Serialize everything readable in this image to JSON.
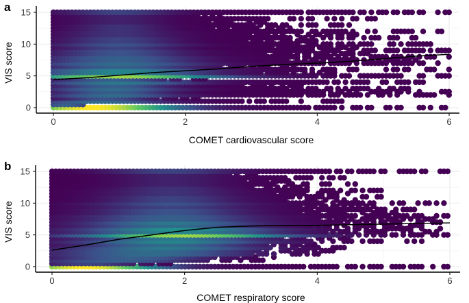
{
  "chart_data": [
    {
      "panel": "a",
      "type": "scatter",
      "title": "",
      "xlabel": "COMET cardiovascular score",
      "ylabel": "VIS score",
      "xlim": [
        0,
        6
      ],
      "ylim": [
        0,
        15
      ],
      "xticks": [
        0,
        2,
        4,
        6
      ],
      "yticks": [
        0,
        5,
        10,
        15
      ],
      "grid": true,
      "color_scale": [
        "#440154",
        "#3b528b",
        "#21918c",
        "#5ec962",
        "#fde725"
      ],
      "density_by_level": [
        {
          "y": 0,
          "max_x": 6.0,
          "hot": [
            0.6,
            0.9
          ],
          "hot_strength": 1.0
        },
        {
          "y": 0.5,
          "max_x": 0.5,
          "hot": [
            0.2,
            0.3
          ],
          "hot_strength": 0.3
        },
        {
          "y": 1,
          "max_x": 4.4,
          "hot": [
            0.7,
            0.7
          ],
          "hot_strength": 0.35
        },
        {
          "y": 1.5,
          "max_x": 2.2,
          "hot": [
            0.8,
            0.5
          ],
          "hot_strength": 0.25
        },
        {
          "y": 2,
          "max_x": 6.0,
          "hot": [
            0.9,
            0.7
          ],
          "hot_strength": 0.35
        },
        {
          "y": 2.5,
          "max_x": 6.0,
          "hot": [
            0.9,
            0.6
          ],
          "hot_strength": 0.3
        },
        {
          "y": 3,
          "max_x": 5.6,
          "hot": [
            0.9,
            0.7
          ],
          "hot_strength": 0.35
        },
        {
          "y": 3.5,
          "max_x": 3.8,
          "hot": [
            0.9,
            0.6
          ],
          "hot_strength": 0.3
        },
        {
          "y": 4,
          "max_x": 6.0,
          "hot": [
            1.0,
            0.8
          ],
          "hot_strength": 0.4
        },
        {
          "y": 4.5,
          "max_x": 2.4,
          "hot": [
            0.9,
            0.6
          ],
          "hot_strength": 0.3
        },
        {
          "y": 5,
          "max_x": 6.0,
          "hot": [
            1.0,
            1.1
          ],
          "hot_strength": 0.85
        },
        {
          "y": 5.5,
          "max_x": 4.3,
          "hot": [
            1.0,
            0.9
          ],
          "hot_strength": 0.45
        },
        {
          "y": 6,
          "max_x": 6.0,
          "hot": [
            1.0,
            0.9
          ],
          "hot_strength": 0.45
        },
        {
          "y": 6.5,
          "max_x": 3.8,
          "hot": [
            1.0,
            0.8
          ],
          "hot_strength": 0.3
        },
        {
          "y": 7,
          "max_x": 6.0,
          "hot": [
            1.0,
            0.9
          ],
          "hot_strength": 0.35
        },
        {
          "y": 7.5,
          "max_x": 5.6,
          "hot": [
            1.0,
            0.8
          ],
          "hot_strength": 0.3
        },
        {
          "y": 8,
          "max_x": 6.0,
          "hot": [
            1.0,
            0.8
          ],
          "hot_strength": 0.3
        },
        {
          "y": 8.5,
          "max_x": 5.0,
          "hot": [
            1.0,
            0.7
          ],
          "hot_strength": 0.25
        },
        {
          "y": 9,
          "max_x": 6.0,
          "hot": [
            1.0,
            0.7
          ],
          "hot_strength": 0.25
        },
        {
          "y": 9.5,
          "max_x": 4.6,
          "hot": [
            1.0,
            0.6
          ],
          "hot_strength": 0.2
        },
        {
          "y": 10,
          "max_x": 6.0,
          "hot": [
            1.0,
            0.7
          ],
          "hot_strength": 0.25
        },
        {
          "y": 10.5,
          "max_x": 4.0,
          "hot": [
            1.0,
            0.6
          ],
          "hot_strength": 0.2
        },
        {
          "y": 11,
          "max_x": 5.5,
          "hot": [
            1.0,
            0.6
          ],
          "hot_strength": 0.2
        },
        {
          "y": 11.5,
          "max_x": 4.6,
          "hot": [
            1.0,
            0.6
          ],
          "hot_strength": 0.15
        },
        {
          "y": 12,
          "max_x": 6.0,
          "hot": [
            1.0,
            0.6
          ],
          "hot_strength": 0.15
        },
        {
          "y": 12.5,
          "max_x": 3.6,
          "hot": [
            1.0,
            0.5
          ],
          "hot_strength": 0.15
        },
        {
          "y": 13,
          "max_x": 4.5,
          "hot": [
            1.0,
            0.5
          ],
          "hot_strength": 0.15
        },
        {
          "y": 13.5,
          "max_x": 3.2,
          "hot": [
            1.0,
            0.5
          ],
          "hot_strength": 0.1
        },
        {
          "y": 14,
          "max_x": 4.9,
          "hot": [
            1.0,
            0.5
          ],
          "hot_strength": 0.1
        },
        {
          "y": 14.5,
          "max_x": 2.6,
          "hot": [
            1.0,
            0.5
          ],
          "hot_strength": 0.1
        },
        {
          "y": 15,
          "max_x": 6.0,
          "hot": [
            1.0,
            0.6
          ],
          "hot_strength": 0.2
        }
      ],
      "trend_line": {
        "x": [
          0.0,
          0.5,
          1.0,
          1.5,
          2.0,
          2.5,
          3.0,
          3.5,
          4.0,
          4.5,
          5.0,
          5.5,
          6.0
        ],
        "y": [
          4.4,
          4.7,
          5.1,
          5.5,
          5.8,
          6.1,
          6.5,
          6.8,
          7.0,
          7.3,
          7.7,
          8.1,
          8.4
        ]
      }
    },
    {
      "panel": "b",
      "type": "scatter",
      "title": "",
      "xlabel": "COMET respiratory score",
      "ylabel": "VIS score",
      "xlim": [
        0,
        6
      ],
      "ylim": [
        0,
        15
      ],
      "xticks": [
        0,
        2,
        4,
        6
      ],
      "yticks": [
        0,
        5,
        10,
        15
      ],
      "grid": true,
      "color_scale": [
        "#440154",
        "#3b528b",
        "#21918c",
        "#5ec962",
        "#fde725"
      ],
      "density_by_level": [
        {
          "y": 0,
          "max_x": 6.0,
          "hot": [
            0.5,
            0.8
          ],
          "hot_strength": 1.0
        },
        {
          "y": 0.5,
          "max_x": 1.8,
          "hot": [
            0.6,
            0.5
          ],
          "hot_strength": 0.2
        },
        {
          "y": 1,
          "max_x": 3.2,
          "hot": [
            1.0,
            0.8
          ],
          "hot_strength": 0.3
        },
        {
          "y": 1.5,
          "max_x": 3.4,
          "hot": [
            1.2,
            0.8
          ],
          "hot_strength": 0.3
        },
        {
          "y": 2,
          "max_x": 4.1,
          "hot": [
            1.5,
            1.0
          ],
          "hot_strength": 0.35
        },
        {
          "y": 2.5,
          "max_x": 4.3,
          "hot": [
            1.5,
            1.0
          ],
          "hot_strength": 0.35
        },
        {
          "y": 3,
          "max_x": 4.6,
          "hot": [
            1.7,
            1.0
          ],
          "hot_strength": 0.4
        },
        {
          "y": 3.5,
          "max_x": 4.0,
          "hot": [
            1.7,
            0.9
          ],
          "hot_strength": 0.35
        },
        {
          "y": 4,
          "max_x": 5.6,
          "hot": [
            1.8,
            1.0
          ],
          "hot_strength": 0.45
        },
        {
          "y": 4.5,
          "max_x": 4.6,
          "hot": [
            1.8,
            0.9
          ],
          "hot_strength": 0.4
        },
        {
          "y": 5,
          "max_x": 6.0,
          "hot": [
            2.0,
            1.1
          ],
          "hot_strength": 0.85
        },
        {
          "y": 5.5,
          "max_x": 5.8,
          "hot": [
            1.9,
            1.0
          ],
          "hot_strength": 0.45
        },
        {
          "y": 6,
          "max_x": 6.0,
          "hot": [
            1.9,
            1.0
          ],
          "hot_strength": 0.5
        },
        {
          "y": 6.5,
          "max_x": 5.6,
          "hot": [
            1.8,
            0.9
          ],
          "hot_strength": 0.35
        },
        {
          "y": 7,
          "max_x": 6.0,
          "hot": [
            1.8,
            0.9
          ],
          "hot_strength": 0.4
        },
        {
          "y": 7.5,
          "max_x": 5.8,
          "hot": [
            1.8,
            0.9
          ],
          "hot_strength": 0.3
        },
        {
          "y": 8,
          "max_x": 6.0,
          "hot": [
            1.8,
            0.9
          ],
          "hot_strength": 0.3
        },
        {
          "y": 8.5,
          "max_x": 5.3,
          "hot": [
            1.8,
            0.8
          ],
          "hot_strength": 0.25
        },
        {
          "y": 9,
          "max_x": 5.7,
          "hot": [
            1.8,
            0.8
          ],
          "hot_strength": 0.25
        },
        {
          "y": 9.5,
          "max_x": 5.0,
          "hot": [
            1.8,
            0.8
          ],
          "hot_strength": 0.2
        },
        {
          "y": 10,
          "max_x": 6.0,
          "hot": [
            1.8,
            0.8
          ],
          "hot_strength": 0.25
        },
        {
          "y": 10.5,
          "max_x": 4.7,
          "hot": [
            1.8,
            0.7
          ],
          "hot_strength": 0.2
        },
        {
          "y": 11,
          "max_x": 5.0,
          "hot": [
            1.8,
            0.7
          ],
          "hot_strength": 0.2
        },
        {
          "y": 11.5,
          "max_x": 4.5,
          "hot": [
            1.8,
            0.7
          ],
          "hot_strength": 0.15
        },
        {
          "y": 12,
          "max_x": 5.2,
          "hot": [
            1.8,
            0.7
          ],
          "hot_strength": 0.15
        },
        {
          "y": 12.5,
          "max_x": 4.0,
          "hot": [
            1.8,
            0.6
          ],
          "hot_strength": 0.15
        },
        {
          "y": 13,
          "max_x": 4.6,
          "hot": [
            1.8,
            0.6
          ],
          "hot_strength": 0.1
        },
        {
          "y": 13.5,
          "max_x": 3.6,
          "hot": [
            1.8,
            0.6
          ],
          "hot_strength": 0.1
        },
        {
          "y": 14,
          "max_x": 4.5,
          "hot": [
            1.8,
            0.6
          ],
          "hot_strength": 0.1
        },
        {
          "y": 14.5,
          "max_x": 3.2,
          "hot": [
            1.8,
            0.6
          ],
          "hot_strength": 0.1
        },
        {
          "y": 15,
          "max_x": 6.0,
          "hot": [
            1.8,
            0.7
          ],
          "hot_strength": 0.2
        }
      ],
      "trend_line": {
        "x": [
          0.0,
          0.5,
          1.0,
          1.5,
          2.0,
          2.5,
          3.0,
          3.5,
          4.0,
          4.5,
          5.0,
          5.5,
          6.0
        ],
        "y": [
          2.6,
          3.4,
          4.3,
          5.0,
          5.7,
          6.2,
          6.4,
          6.5,
          6.5,
          6.6,
          6.7,
          6.8,
          6.9
        ]
      }
    }
  ]
}
